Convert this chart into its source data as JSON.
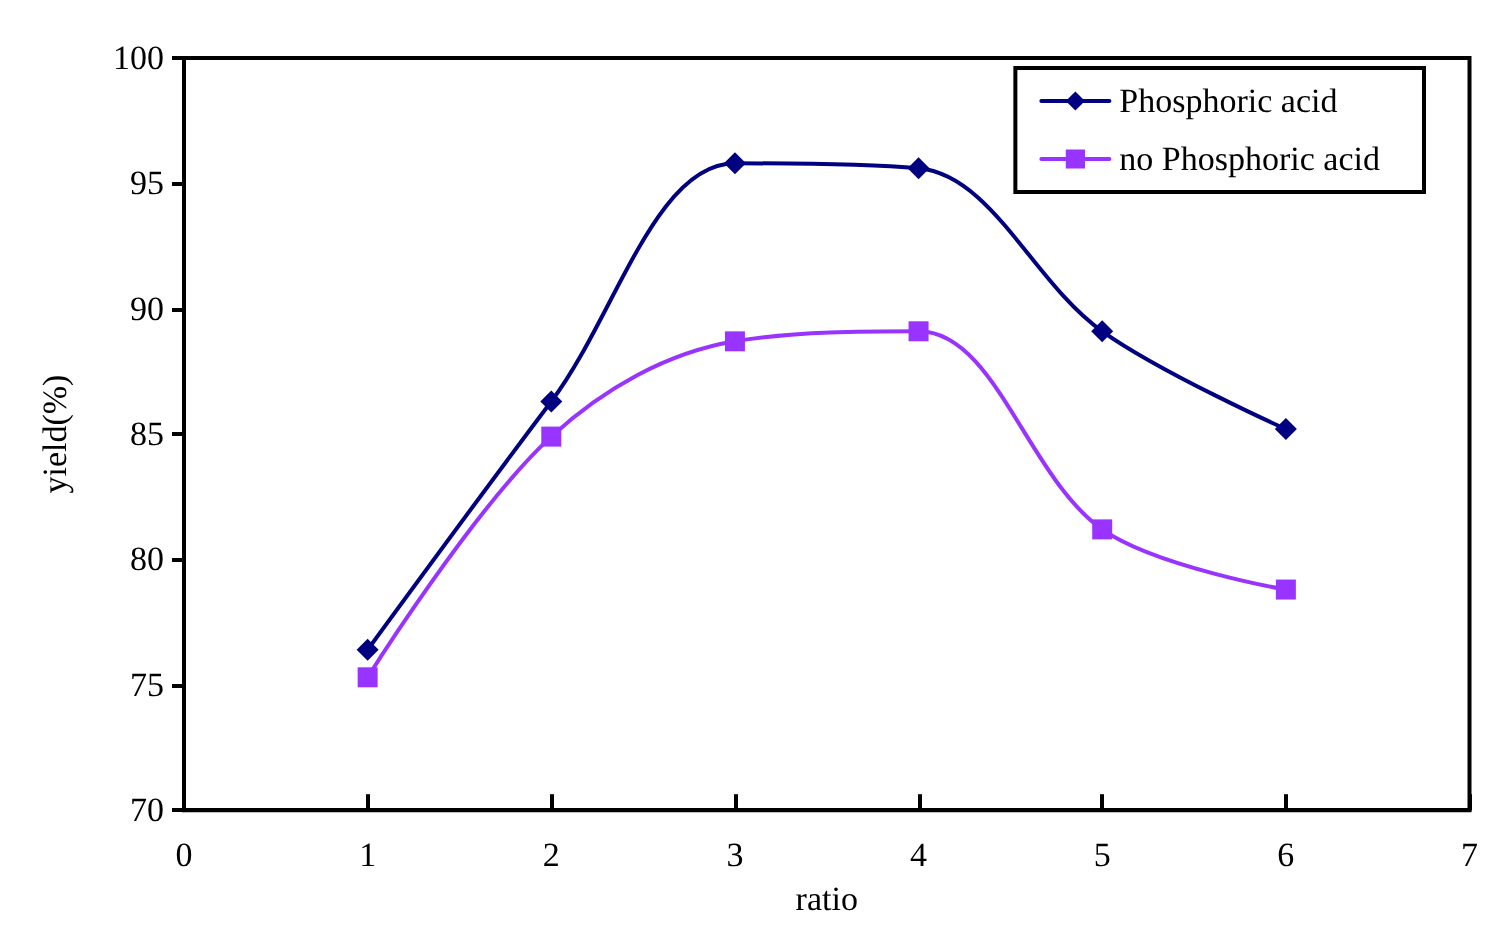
{
  "chart_data": {
    "type": "line",
    "xlabel": "ratio",
    "ylabel": "yield(%)",
    "x": [
      1,
      2,
      3,
      4,
      5,
      6
    ],
    "series": [
      {
        "name": "Phosphoric acid",
        "color": "#000080",
        "marker": "diamond",
        "values": [
          76.4,
          86.3,
          95.8,
          95.6,
          89.1,
          85.2
        ]
      },
      {
        "name": "no Phosphoric acid",
        "color": "#9933ff",
        "marker": "square",
        "values": [
          75.3,
          84.9,
          88.7,
          89.1,
          81.2,
          78.8
        ]
      }
    ],
    "xlim": [
      0,
      7
    ],
    "xticks": [
      0,
      1,
      2,
      3,
      4,
      5,
      6,
      7
    ],
    "ylim": [
      70,
      100
    ],
    "yticks": [
      70,
      75,
      80,
      85,
      90,
      95,
      100
    ],
    "grid": false,
    "legend": "top right",
    "line_style": "solid"
  }
}
